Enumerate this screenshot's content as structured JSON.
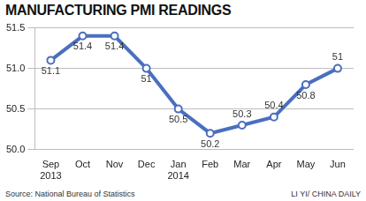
{
  "chart_data": {
    "type": "line",
    "title": "MANUFACTURING PMI READINGS",
    "categories": [
      "Sep\n2013",
      "Oct",
      "Nov",
      "Dec",
      "Jan\n2014",
      "Feb",
      "Mar",
      "Apr",
      "May",
      "Jun"
    ],
    "values": [
      51.1,
      51.4,
      51.4,
      51,
      50.5,
      50.2,
      50.3,
      50.4,
      50.8,
      51
    ],
    "color": "#4a6fbf",
    "marker": "circle",
    "line_style": "solid",
    "ylim": [
      50,
      51.5
    ],
    "yticks": [
      {
        "value": 50,
        "label": "50.0"
      },
      50.5,
      {
        "value": 51,
        "label": "51.0"
      },
      51.5
    ],
    "grid": true,
    "data_labels": true,
    "source": "Source: National Bureau of Statistics",
    "credit": "LI YI/ CHINA DAILY"
  }
}
